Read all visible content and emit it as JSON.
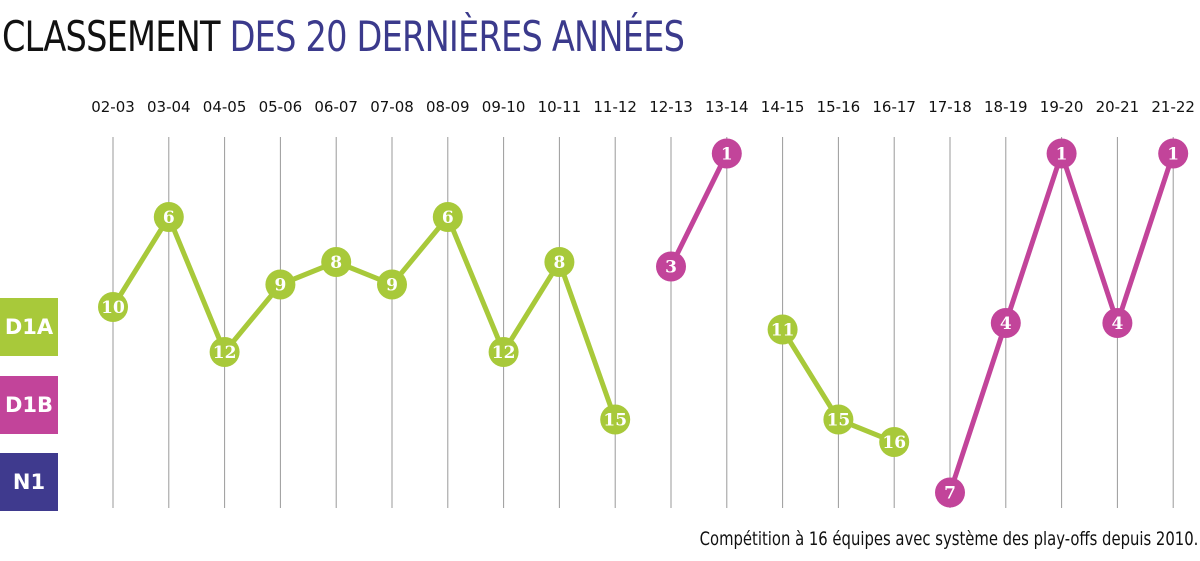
{
  "title": {
    "part1": "CLASSEMENT",
    "part2": "DES 20 DERNIÈRES ANNÉES"
  },
  "footnote": "Compétition à 16 équipes avec système des play-offs depuis 2010.",
  "colors": {
    "title_dark": "#111111",
    "title_accent": "#3b3a8c",
    "D1A": "#a8c93a",
    "D1B": "#c2449a",
    "N1": "#3f3a8e"
  },
  "divisions": [
    {
      "label": "D1A",
      "color": "#a8c93a"
    },
    {
      "label": "D1B",
      "color": "#c2449a"
    },
    {
      "label": "N1",
      "color": "#3f3a8e"
    }
  ],
  "chart_data": {
    "type": "line",
    "x": [
      "02-03",
      "03-04",
      "04-05",
      "05-06",
      "06-07",
      "07-08",
      "08-09",
      "09-10",
      "10-11",
      "11-12",
      "12-13",
      "13-14",
      "14-15",
      "15-16",
      "16-17",
      "17-18",
      "18-19",
      "19-20",
      "20-21",
      "21-22"
    ],
    "series": [
      {
        "name": "D1A",
        "color": "#a8c93a",
        "segments": [
          [
            {
              "x": "02-03",
              "rank": 10
            },
            {
              "x": "03-04",
              "rank": 6
            },
            {
              "x": "04-05",
              "rank": 12
            },
            {
              "x": "05-06",
              "rank": 9
            },
            {
              "x": "06-07",
              "rank": 8
            },
            {
              "x": "07-08",
              "rank": 9
            },
            {
              "x": "08-09",
              "rank": 6
            },
            {
              "x": "09-10",
              "rank": 12
            },
            {
              "x": "10-11",
              "rank": 8
            },
            {
              "x": "11-12",
              "rank": 15
            }
          ],
          [
            {
              "x": "14-15",
              "rank": 11
            },
            {
              "x": "15-16",
              "rank": 15
            },
            {
              "x": "16-17",
              "rank": 16
            }
          ]
        ]
      },
      {
        "name": "D1B",
        "color": "#c2449a",
        "segments": [
          [
            {
              "x": "12-13",
              "rank": 3
            },
            {
              "x": "13-14",
              "rank": 1
            }
          ],
          [
            {
              "x": "17-18",
              "rank": 7
            },
            {
              "x": "18-19",
              "rank": 4
            },
            {
              "x": "19-20",
              "rank": 1
            },
            {
              "x": "20-21",
              "rank": 4
            },
            {
              "x": "21-22",
              "rank": 1
            }
          ]
        ]
      }
    ],
    "y_scale": "rank (position within division, lower is better); D1A ranks drawn below D1B ranks",
    "grid": true,
    "legend": "left"
  }
}
